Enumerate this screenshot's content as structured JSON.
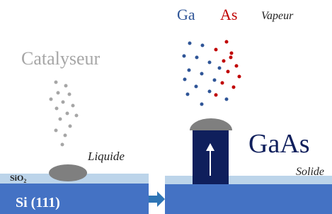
{
  "labels": {
    "ga": "Ga",
    "as": "As",
    "vapeur": "Vapeur",
    "catalyseur": "Catalyseur",
    "liquide": "Liquide",
    "sio2": {
      "base": "SiO",
      "subscript": "2"
    },
    "substrate": "Si (111)",
    "gaas": "GaAs",
    "solide": "Solide"
  }
}
